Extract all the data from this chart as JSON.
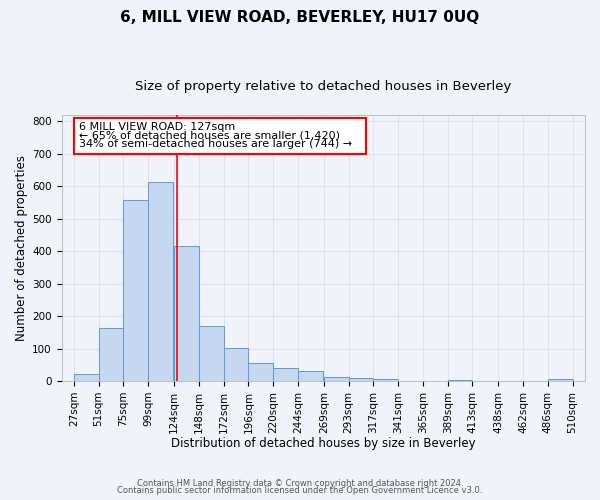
{
  "title": "6, MILL VIEW ROAD, BEVERLEY, HU17 0UQ",
  "subtitle": "Size of property relative to detached houses in Beverley",
  "xlabel": "Distribution of detached houses by size in Beverley",
  "ylabel": "Number of detached properties",
  "bar_left_edges": [
    27,
    51,
    75,
    99,
    124,
    148,
    172,
    196,
    220,
    244,
    269,
    293,
    317,
    341,
    365,
    389,
    413,
    438,
    462,
    486
  ],
  "bar_heights": [
    20,
    162,
    557,
    612,
    415,
    168,
    102,
    55,
    40,
    30,
    13,
    8,
    5,
    1,
    0,
    3,
    0,
    0,
    0,
    5
  ],
  "bar_widths": [
    24,
    24,
    24,
    24,
    24,
    24,
    24,
    24,
    24,
    24,
    24,
    24,
    24,
    24,
    24,
    24,
    24,
    24,
    24,
    24
  ],
  "bar_color": "#c5d8f0",
  "bar_edge_color": "#5b9bd5",
  "property_line_x": 127,
  "property_line_color": "red",
  "tick_labels": [
    "27sqm",
    "51sqm",
    "75sqm",
    "99sqm",
    "124sqm",
    "148sqm",
    "172sqm",
    "196sqm",
    "220sqm",
    "244sqm",
    "269sqm",
    "293sqm",
    "317sqm",
    "341sqm",
    "365sqm",
    "389sqm",
    "413sqm",
    "438sqm",
    "462sqm",
    "486sqm",
    "510sqm"
  ],
  "tick_positions": [
    27,
    51,
    75,
    99,
    124,
    148,
    172,
    196,
    220,
    244,
    269,
    293,
    317,
    341,
    365,
    389,
    413,
    438,
    462,
    486,
    510
  ],
  "ylim": [
    0,
    820
  ],
  "yticks": [
    0,
    100,
    200,
    300,
    400,
    500,
    600,
    700,
    800
  ],
  "xlim": [
    15,
    522
  ],
  "annotation_line1": "6 MILL VIEW ROAD: 127sqm",
  "annotation_line2": "← 65% of detached houses are smaller (1,420)",
  "annotation_line3": "34% of semi-detached houses are larger (744) →",
  "footer_line1": "Contains HM Land Registry data © Crown copyright and database right 2024.",
  "footer_line2": "Contains public sector information licensed under the Open Government Licence v3.0.",
  "bg_color": "#f0f4fa",
  "grid_color": "#d8e4f0",
  "title_fontsize": 11,
  "subtitle_fontsize": 9.5,
  "axis_label_fontsize": 8.5,
  "tick_fontsize": 7.5,
  "annotation_fontsize": 8,
  "footer_fontsize": 6
}
